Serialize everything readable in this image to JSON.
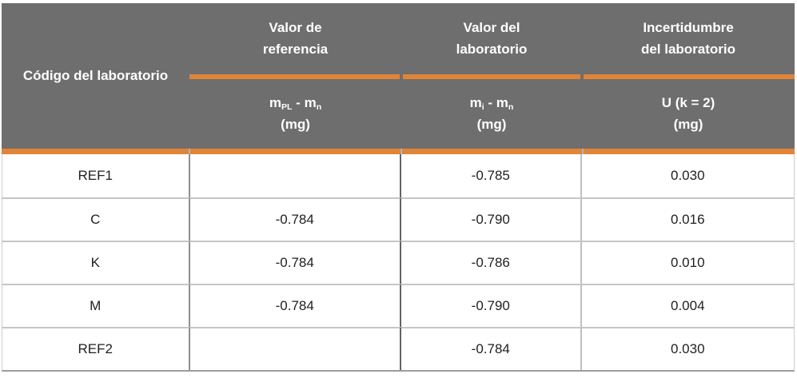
{
  "colors": {
    "accent": "#E08538",
    "header_bg": "#6F6E6E",
    "header_text": "#FFFFFF",
    "body_text": "#212121",
    "row_line": "#C6C6C6",
    "divider_col1": "#8F8F8F",
    "divider_mid": "#636363",
    "divider_col3": "#C0C0C0",
    "bottom_line": "#9C9C9C",
    "side_line": "#CDCDCD"
  },
  "header": {
    "col1": "Código del laboratorio",
    "groups": [
      {
        "line1": "Valor de",
        "line2": "referencia"
      },
      {
        "line1": "Valor del",
        "line2": "laboratorio"
      },
      {
        "line1": "Incertidumbre",
        "line2": "del laboratorio"
      }
    ],
    "sub_ref": {
      "m1": "m",
      "s1": "PL",
      "dash": " - ",
      "m2": "m",
      "s2": "n",
      "unit": "(mg)"
    },
    "sub_lab": {
      "m1": "m",
      "s1": "i",
      "dash": " - ",
      "m2": "m",
      "s2": "n",
      "unit": "(mg)"
    },
    "sub_unc": {
      "line1": "U (k = 2)",
      "unit": "(mg)"
    }
  },
  "rows": [
    {
      "code": "REF1",
      "ref": "",
      "lab": "-0.785",
      "unc": "0.030"
    },
    {
      "code": "C",
      "ref": "-0.784",
      "lab": "-0.790",
      "unc": "0.016"
    },
    {
      "code": "K",
      "ref": "-0.784",
      "lab": "-0.786",
      "unc": "0.010"
    },
    {
      "code": "M",
      "ref": "-0.784",
      "lab": "-0.790",
      "unc": "0.004"
    },
    {
      "code": "REF2",
      "ref": "",
      "lab": "-0.784",
      "unc": "0.030"
    }
  ],
  "chart_data": {
    "type": "table",
    "title": "",
    "columns": [
      "Código del laboratorio",
      "Valor de referencia: m_PL - m_n (mg)",
      "Valor del laboratorio: m_i - m_n (mg)",
      "Incertidumbre del laboratorio: U (k = 2) (mg)"
    ],
    "rows": [
      [
        "REF1",
        null,
        -0.785,
        0.03
      ],
      [
        "C",
        -0.784,
        -0.79,
        0.016
      ],
      [
        "K",
        -0.784,
        -0.786,
        0.01
      ],
      [
        "M",
        -0.784,
        -0.79,
        0.004
      ],
      [
        "REF2",
        null,
        -0.784,
        0.03
      ]
    ]
  }
}
